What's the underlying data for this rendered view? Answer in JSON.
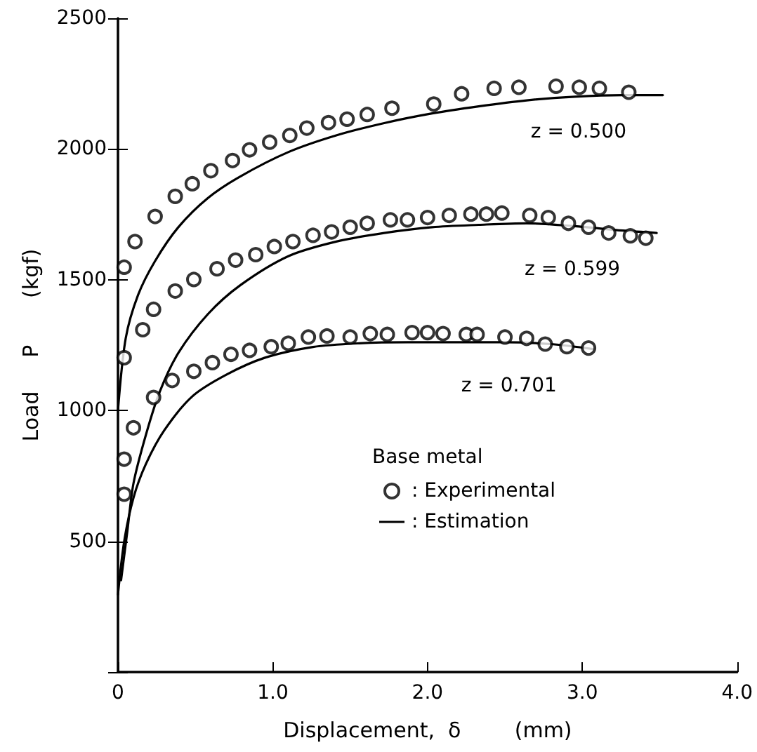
{
  "chart_data": {
    "type": "scatter",
    "xlabel": "Displacement,  δ        (mm)",
    "ylabel": "Load     P       (kgf)",
    "legend_title": "Base metal",
    "legend": "bottom right",
    "grid": false,
    "xlim": [
      0,
      4
    ],
    "xticks": [
      {
        "value": 0,
        "label": "0"
      },
      {
        "value": 1,
        "label": "1.0"
      },
      {
        "value": 2,
        "label": "2.0"
      },
      {
        "value": 3,
        "label": "3.0"
      },
      {
        "value": 4,
        "label": "4.0"
      }
    ],
    "ylim": [
      0,
      2500
    ],
    "yticks": [
      {
        "value": 0,
        "label": null
      },
      500,
      1000,
      1500,
      2000,
      2500
    ],
    "annotations": [
      "z = 0.500",
      "z = 0.599",
      "z = 0.701"
    ],
    "series": [
      {
        "name": ": Experimental",
        "marker": "circle",
        "color": "#000000",
        "x": [
          0.04,
          0.11,
          0.24,
          0.37,
          0.48,
          0.6,
          0.74,
          0.85,
          0.98,
          1.11,
          1.22,
          1.36,
          1.48,
          1.61,
          1.77,
          2.04,
          2.22,
          2.43,
          2.59,
          2.83,
          2.98,
          3.11,
          3.3
        ],
        "values": [
          1548,
          1646,
          1742,
          1819,
          1867,
          1917,
          1956,
          1997,
          2026,
          2052,
          2080,
          2101,
          2114,
          2132,
          2156,
          2172,
          2211,
          2232,
          2236,
          2240,
          2236,
          2232,
          2217
        ]
      },
      {
        "marker": "circle",
        "color": "#000000",
        "x": [
          0.04,
          0.16,
          0.23,
          0.37,
          0.49,
          0.64,
          0.76,
          0.89,
          1.01,
          1.13,
          1.26,
          1.38,
          1.5,
          1.61,
          1.76,
          1.87,
          2.0,
          2.14,
          2.28,
          2.38,
          2.48,
          2.66,
          2.78,
          2.91,
          3.04,
          3.17,
          3.31,
          3.41
        ],
        "values": [
          1202,
          1309,
          1387,
          1457,
          1501,
          1542,
          1575,
          1596,
          1627,
          1646,
          1670,
          1683,
          1701,
          1716,
          1729,
          1729,
          1738,
          1746,
          1751,
          1751,
          1755,
          1746,
          1738,
          1716,
          1701,
          1679,
          1668,
          1659
        ]
      },
      {
        "marker": "circle",
        "color": "#000000",
        "x": [
          0.04,
          0.04,
          0.1,
          0.23,
          0.35,
          0.49,
          0.61,
          0.73,
          0.85,
          0.99,
          1.1,
          1.23,
          1.35,
          1.5,
          1.63,
          1.74,
          1.9,
          2.0,
          2.1,
          2.25,
          2.32,
          2.5,
          2.64,
          2.76,
          2.9,
          3.04
        ],
        "values": [
          680,
          814,
          934,
          1050,
          1115,
          1150,
          1183,
          1215,
          1230,
          1244,
          1257,
          1281,
          1285,
          1281,
          1294,
          1291,
          1298,
          1298,
          1294,
          1291,
          1291,
          1281,
          1276,
          1254,
          1244,
          1239
        ]
      },
      {
        "name": ": Estimation",
        "type": "line",
        "marker": "none",
        "line_style": "solid",
        "color": "#000000",
        "x": [
          0,
          0.05,
          0.13,
          0.24,
          0.39,
          0.58,
          0.79,
          1.1,
          1.41,
          1.72,
          2.03,
          2.33,
          2.64,
          2.95,
          3.26,
          3.52
        ],
        "values": [
          1000,
          1276,
          1442,
          1572,
          1701,
          1812,
          1895,
          1988,
          2052,
          2099,
          2136,
          2163,
          2186,
          2200,
          2206,
          2206
        ]
      },
      {
        "type": "line",
        "marker": "none",
        "line_style": "solid",
        "color": "#000000",
        "x": [
          0.02,
          0.06,
          0.1,
          0.18,
          0.27,
          0.39,
          0.58,
          0.79,
          1.1,
          1.41,
          1.72,
          2.03,
          2.33,
          2.64,
          2.95,
          3.26,
          3.48
        ],
        "values": [
          351,
          536,
          721,
          906,
          1072,
          1220,
          1368,
          1479,
          1590,
          1646,
          1679,
          1701,
          1710,
          1716,
          1705,
          1688,
          1679
        ]
      },
      {
        "type": "line",
        "marker": "none",
        "line_style": "solid",
        "color": "#000000",
        "x": [
          0,
          0.04,
          0.1,
          0.18,
          0.3,
          0.48,
          0.7,
          0.95,
          1.26,
          1.56,
          1.87,
          2.18,
          2.49,
          2.8,
          3.07
        ],
        "values": [
          296,
          499,
          666,
          795,
          925,
          1054,
          1137,
          1202,
          1243,
          1257,
          1261,
          1261,
          1261,
          1254,
          1235
        ]
      }
    ]
  }
}
